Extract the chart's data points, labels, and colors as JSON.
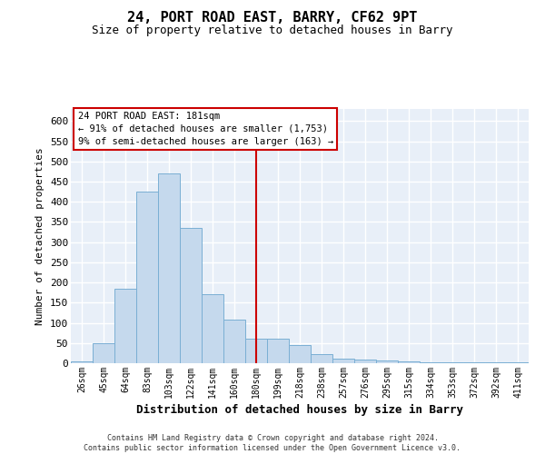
{
  "title": "24, PORT ROAD EAST, BARRY, CF62 9PT",
  "subtitle": "Size of property relative to detached houses in Barry",
  "xlabel": "Distribution of detached houses by size in Barry",
  "ylabel": "Number of detached properties",
  "categories": [
    "26sqm",
    "45sqm",
    "64sqm",
    "83sqm",
    "103sqm",
    "122sqm",
    "141sqm",
    "160sqm",
    "180sqm",
    "199sqm",
    "218sqm",
    "238sqm",
    "257sqm",
    "276sqm",
    "295sqm",
    "315sqm",
    "334sqm",
    "353sqm",
    "372sqm",
    "392sqm",
    "411sqm"
  ],
  "values": [
    5,
    50,
    185,
    425,
    470,
    335,
    170,
    108,
    60,
    60,
    45,
    22,
    11,
    8,
    6,
    5,
    3,
    3,
    2,
    2,
    2
  ],
  "bar_color": "#c5d9ed",
  "bar_edge_color": "#7aafd4",
  "marker_index": 8,
  "marker_label": "24 PORT ROAD EAST: 181sqm",
  "marker_line_color": "#cc0000",
  "annotation_line1": "← 91% of detached houses are smaller (1,753)",
  "annotation_line2": "9% of semi-detached houses are larger (163) →",
  "annotation_box_edgecolor": "#cc0000",
  "ylim": [
    0,
    630
  ],
  "yticks": [
    0,
    50,
    100,
    150,
    200,
    250,
    300,
    350,
    400,
    450,
    500,
    550,
    600
  ],
  "background_color": "#e8eff8",
  "footer_line1": "Contains HM Land Registry data © Crown copyright and database right 2024.",
  "footer_line2": "Contains public sector information licensed under the Open Government Licence v3.0.",
  "grid_color": "#ffffff",
  "fig_width": 6.0,
  "fig_height": 5.0,
  "fig_dpi": 100
}
